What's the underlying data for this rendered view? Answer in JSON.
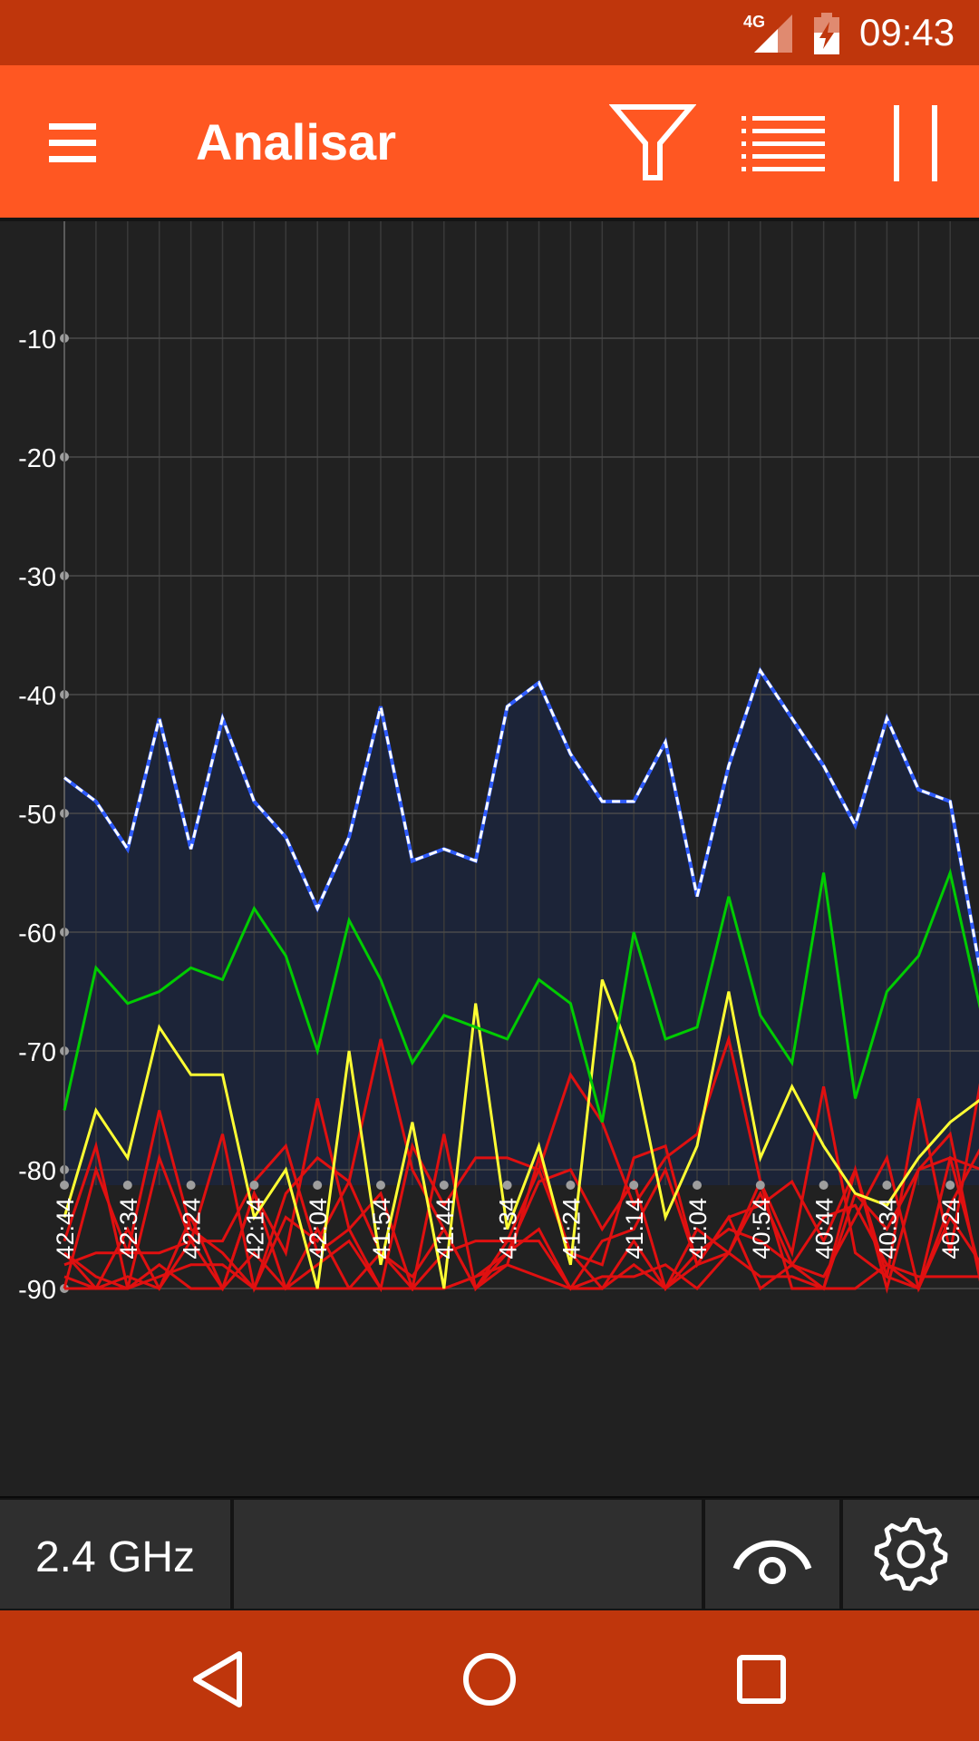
{
  "status_bar": {
    "network": "4G",
    "time": "09:43"
  },
  "toolbar": {
    "title": "Analisar"
  },
  "bottom_bar": {
    "band_label": "2.4 GHz"
  },
  "colors": {
    "primary": "#FF5722",
    "primary_dark": "#BF360C",
    "background": "#212121",
    "plot_fill": "#1c2438",
    "grid": "#4a4a4a",
    "series_blue": "#2f5cff",
    "series_green": "#00cc00",
    "series_yellow": "#ffff33",
    "series_red": "#e01010"
  },
  "icons": {
    "menu": "hamburger-icon",
    "filter": "filter-icon",
    "list": "list-icon",
    "pause": "pause-icon",
    "view": "eye-icon",
    "settings": "gear-icon",
    "back": "back-triangle-icon",
    "home": "home-circle-icon",
    "recents": "recents-square-icon"
  },
  "chart_data": {
    "type": "line",
    "ylim": [
      -100,
      0
    ],
    "y_ticks": [
      -10,
      -20,
      -30,
      -40,
      -50,
      -60,
      -70,
      -80,
      -90
    ],
    "x_tick_labels": [
      "42:44",
      "42:34",
      "42:24",
      "42:14",
      "42:04",
      "41:54",
      "41:44",
      "41:34",
      "41:24",
      "41:14",
      "41:04",
      "40:54",
      "40:44",
      "40:34",
      "40:24"
    ],
    "grid": true,
    "series": [
      {
        "color": "#2f5cff",
        "style": "dashed-white",
        "filled": true,
        "values": [
          -47,
          -49,
          -53,
          -42,
          -53,
          -42,
          -49,
          -52,
          -58,
          -52,
          -41,
          -54,
          -53,
          -54,
          -41,
          -39,
          -45,
          -49,
          -49,
          -44,
          -57,
          -46,
          -38,
          -42,
          -46,
          -51,
          -42,
          -48,
          -49,
          -64
        ]
      },
      {
        "color": "#00cc00",
        "values": [
          -75,
          -63,
          -66,
          -65,
          -63,
          -64,
          -58,
          -62,
          -70,
          -59,
          -64,
          -71,
          -67,
          -68,
          -69,
          -64,
          -66,
          -76,
          -60,
          -69,
          -68,
          -57,
          -67,
          -71,
          -55,
          -74,
          -65,
          -62,
          -55,
          -67
        ]
      },
      {
        "color": "#ffff33",
        "values": [
          -84,
          -75,
          -79,
          -68,
          -72,
          -72,
          -84,
          -80,
          -90,
          -70,
          -88,
          -76,
          -90,
          -66,
          -85,
          -78,
          -88,
          -64,
          -71,
          -84,
          -78,
          -65,
          -79,
          -73,
          -78,
          -82,
          -83,
          -79,
          -76,
          -74
        ]
      },
      {
        "color": "#e01010",
        "values": [
          -90,
          -80,
          -87,
          -75,
          -85,
          -87,
          -90,
          -82,
          -79,
          -81,
          -69,
          -80,
          -85,
          -90,
          -86,
          -80,
          -72,
          -76,
          -83,
          -79,
          -77,
          -69,
          -81,
          -87,
          -73,
          -87,
          -89,
          -74,
          -87,
          -72
        ]
      },
      {
        "color": "#e01010",
        "values": [
          -86,
          -78,
          -90,
          -79,
          -86,
          -90,
          -82,
          -87,
          -74,
          -85,
          -90,
          -78,
          -83,
          -79,
          -79,
          -80,
          -87,
          -88,
          -79,
          -78,
          -88,
          -84,
          -83,
          -81,
          -86,
          -80,
          -89,
          -90,
          -83,
          -78
        ]
      },
      {
        "color": "#e01010",
        "values": [
          -88,
          -87,
          -87,
          -87,
          -86,
          -77,
          -90,
          -84,
          -86,
          -81,
          -87,
          -90,
          -77,
          -90,
          -87,
          -81,
          -80,
          -85,
          -81,
          -90,
          -87,
          -85,
          -86,
          -88,
          -90,
          -82,
          -85,
          -80,
          -77,
          -90
        ]
      },
      {
        "color": "#e01010",
        "values": [
          -90,
          -90,
          -85,
          -90,
          -86,
          -86,
          -81,
          -78,
          -87,
          -85,
          -82,
          -90,
          -87,
          -86,
          -86,
          -86,
          -90,
          -86,
          -85,
          -80,
          -88,
          -87,
          -81,
          -90,
          -90,
          -80,
          -90,
          -80,
          -79,
          -89
        ]
      },
      {
        "color": "#e01010",
        "values": [
          -87,
          -90,
          -90,
          -89,
          -88,
          -88,
          -90,
          -90,
          -85,
          -90,
          -90,
          -90,
          -90,
          -89,
          -87,
          -85,
          -90,
          -89,
          -89,
          -88,
          -90,
          -87,
          -89,
          -89,
          -90,
          -90,
          -88,
          -89,
          -89,
          -89
        ]
      },
      {
        "color": "#e01010",
        "values": [
          -89,
          -90,
          -89,
          -90,
          -84,
          -90,
          -87,
          -90,
          -90,
          -90,
          -87,
          -89,
          -85,
          -90,
          -88,
          -79,
          -87,
          -90,
          -88,
          -90,
          -88,
          -84,
          -90,
          -88,
          -89,
          -84,
          -79,
          -90,
          -84,
          -88
        ]
      },
      {
        "color": "#e01010",
        "values": [
          -87,
          -89,
          -90,
          -88,
          -90,
          -90,
          -82,
          -90,
          -88,
          -86,
          -90,
          -90,
          -90,
          -89,
          -88,
          -89,
          -90,
          -90,
          -86,
          -90,
          -85,
          -87,
          -82,
          -88,
          -84,
          -83,
          -88,
          -90,
          -79,
          -80
        ]
      }
    ]
  }
}
